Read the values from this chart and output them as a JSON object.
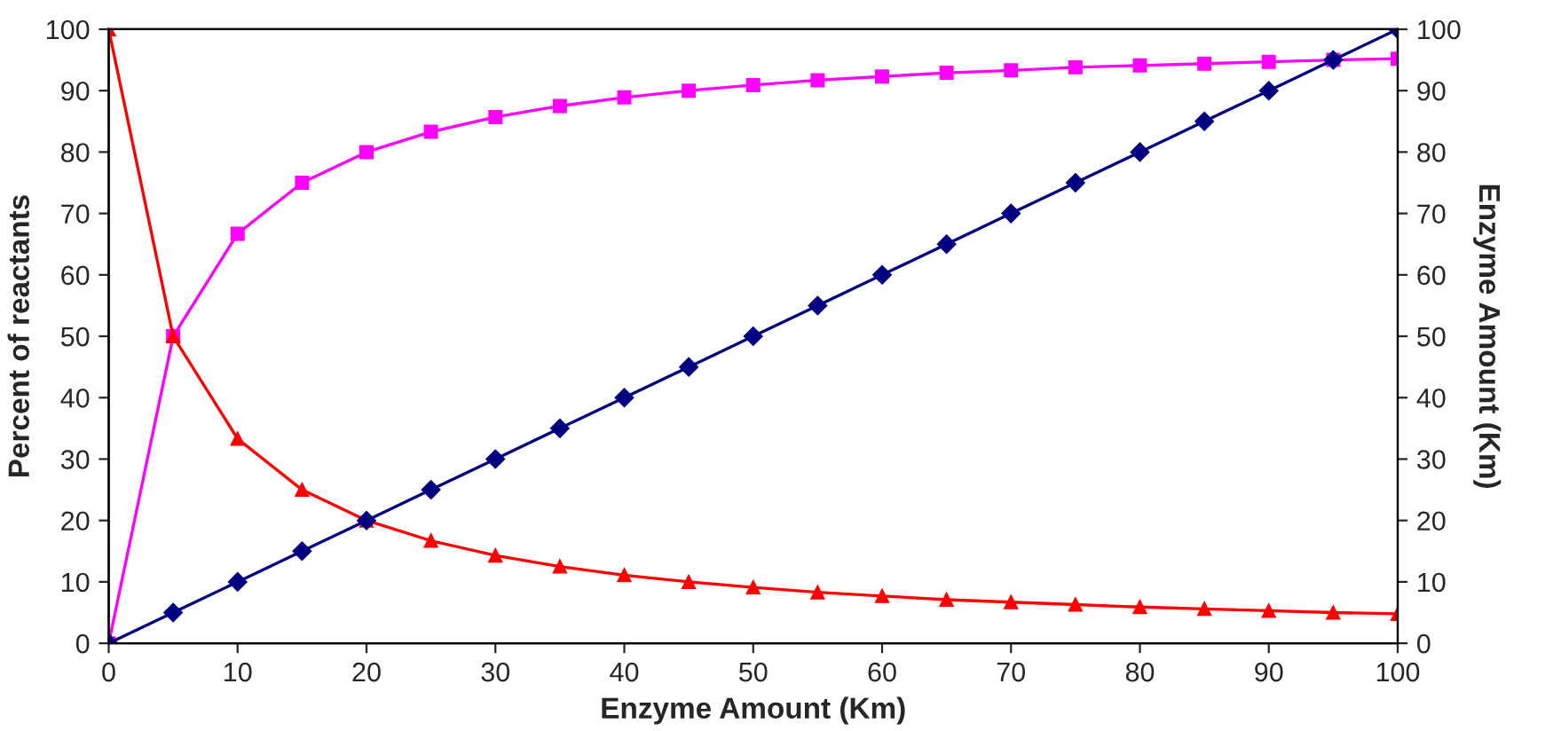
{
  "chart_data": {
    "type": "line",
    "xlabel": "Enzyme Amount (Km)",
    "ylabel": "Percent of reactants",
    "y2label": "Enzyme Amount (Km)",
    "x": [
      0,
      5,
      10,
      15,
      20,
      25,
      30,
      35,
      40,
      45,
      50,
      55,
      60,
      65,
      70,
      75,
      80,
      85,
      90,
      95,
      100
    ],
    "xlim": [
      0,
      100
    ],
    "xticks": [
      0,
      10,
      20,
      30,
      40,
      50,
      60,
      70,
      80,
      90,
      100
    ],
    "ylim": [
      0,
      100
    ],
    "yticks": [
      0,
      10,
      20,
      30,
      40,
      50,
      60,
      70,
      80,
      90,
      100
    ],
    "y2lim": [
      0,
      100
    ],
    "y2ticks": [
      0,
      10,
      20,
      30,
      40,
      50,
      60,
      70,
      80,
      90,
      100
    ],
    "grid": false,
    "legend": false,
    "series": [
      {
        "color": "#ff00ff",
        "marker": "square",
        "values": [
          0,
          50,
          66.7,
          75,
          80,
          83.3,
          85.7,
          87.5,
          88.9,
          90,
          90.9,
          91.7,
          92.3,
          92.9,
          93.3,
          93.8,
          94.1,
          94.4,
          94.7,
          95,
          95.2
        ]
      },
      {
        "color": "#ff0000",
        "marker": "triangle",
        "values": [
          100,
          50,
          33.3,
          25,
          20,
          16.7,
          14.3,
          12.5,
          11.1,
          10,
          9.1,
          8.3,
          7.7,
          7.1,
          6.7,
          6.3,
          5.9,
          5.6,
          5.3,
          5,
          4.8
        ]
      },
      {
        "color": "#000080",
        "marker": "diamond",
        "axis": "y2",
        "values": [
          0,
          5,
          10,
          15,
          20,
          25,
          30,
          35,
          40,
          45,
          50,
          55,
          60,
          65,
          70,
          75,
          80,
          85,
          90,
          95,
          100
        ]
      }
    ]
  }
}
